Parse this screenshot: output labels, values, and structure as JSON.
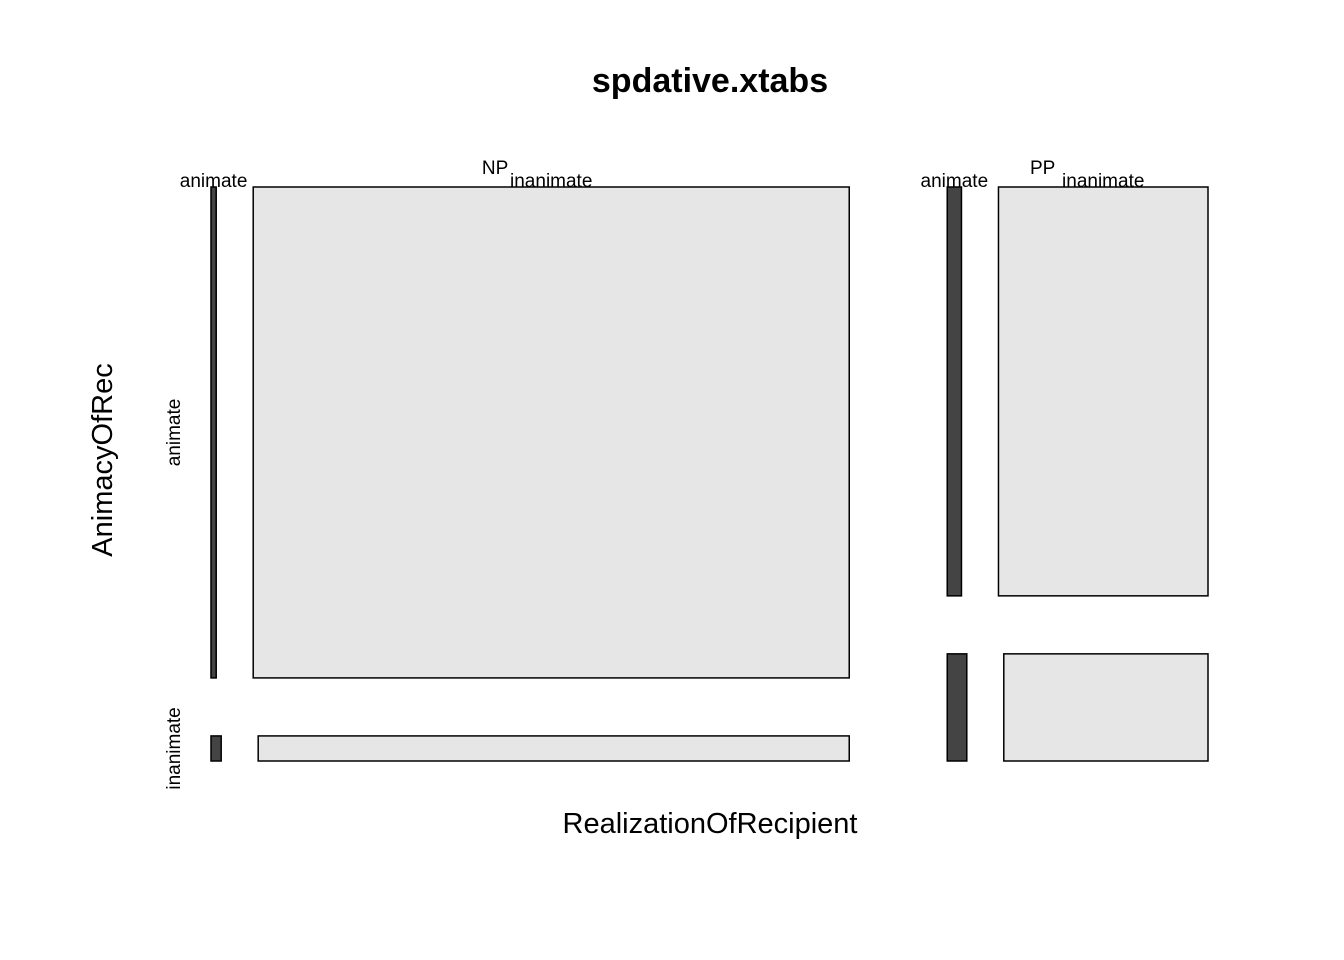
{
  "chart_data": {
    "type": "mosaic",
    "title": "spdative.xtabs",
    "xlabel": "RealizationOfRecipient",
    "ylabel": "AnimacyOfRec",
    "x_levels": [
      "NP",
      "PP"
    ],
    "y_levels": [
      "animate",
      "inanimate"
    ],
    "z_levels": [
      "animate",
      "inanimate"
    ],
    "colors": {
      "animate": "#444444",
      "inanimate": "#e6e6e6"
    },
    "cells": [
      {
        "x": "NP",
        "y": "animate",
        "z": "animate",
        "count": 10
      },
      {
        "x": "NP",
        "y": "animate",
        "z": "inanimate",
        "count": 1145
      },
      {
        "x": "NP",
        "y": "inanimate",
        "z": "animate",
        "count": 1
      },
      {
        "x": "NP",
        "y": "inanimate",
        "z": "inanimate",
        "count": 58
      },
      {
        "x": "PP",
        "y": "animate",
        "z": "animate",
        "count": 25
      },
      {
        "x": "PP",
        "y": "animate",
        "z": "inanimate",
        "count": 368
      },
      {
        "x": "PP",
        "y": "inanimate",
        "z": "animate",
        "count": 9
      },
      {
        "x": "PP",
        "y": "inanimate",
        "z": "inanimate",
        "count": 94
      }
    ]
  }
}
